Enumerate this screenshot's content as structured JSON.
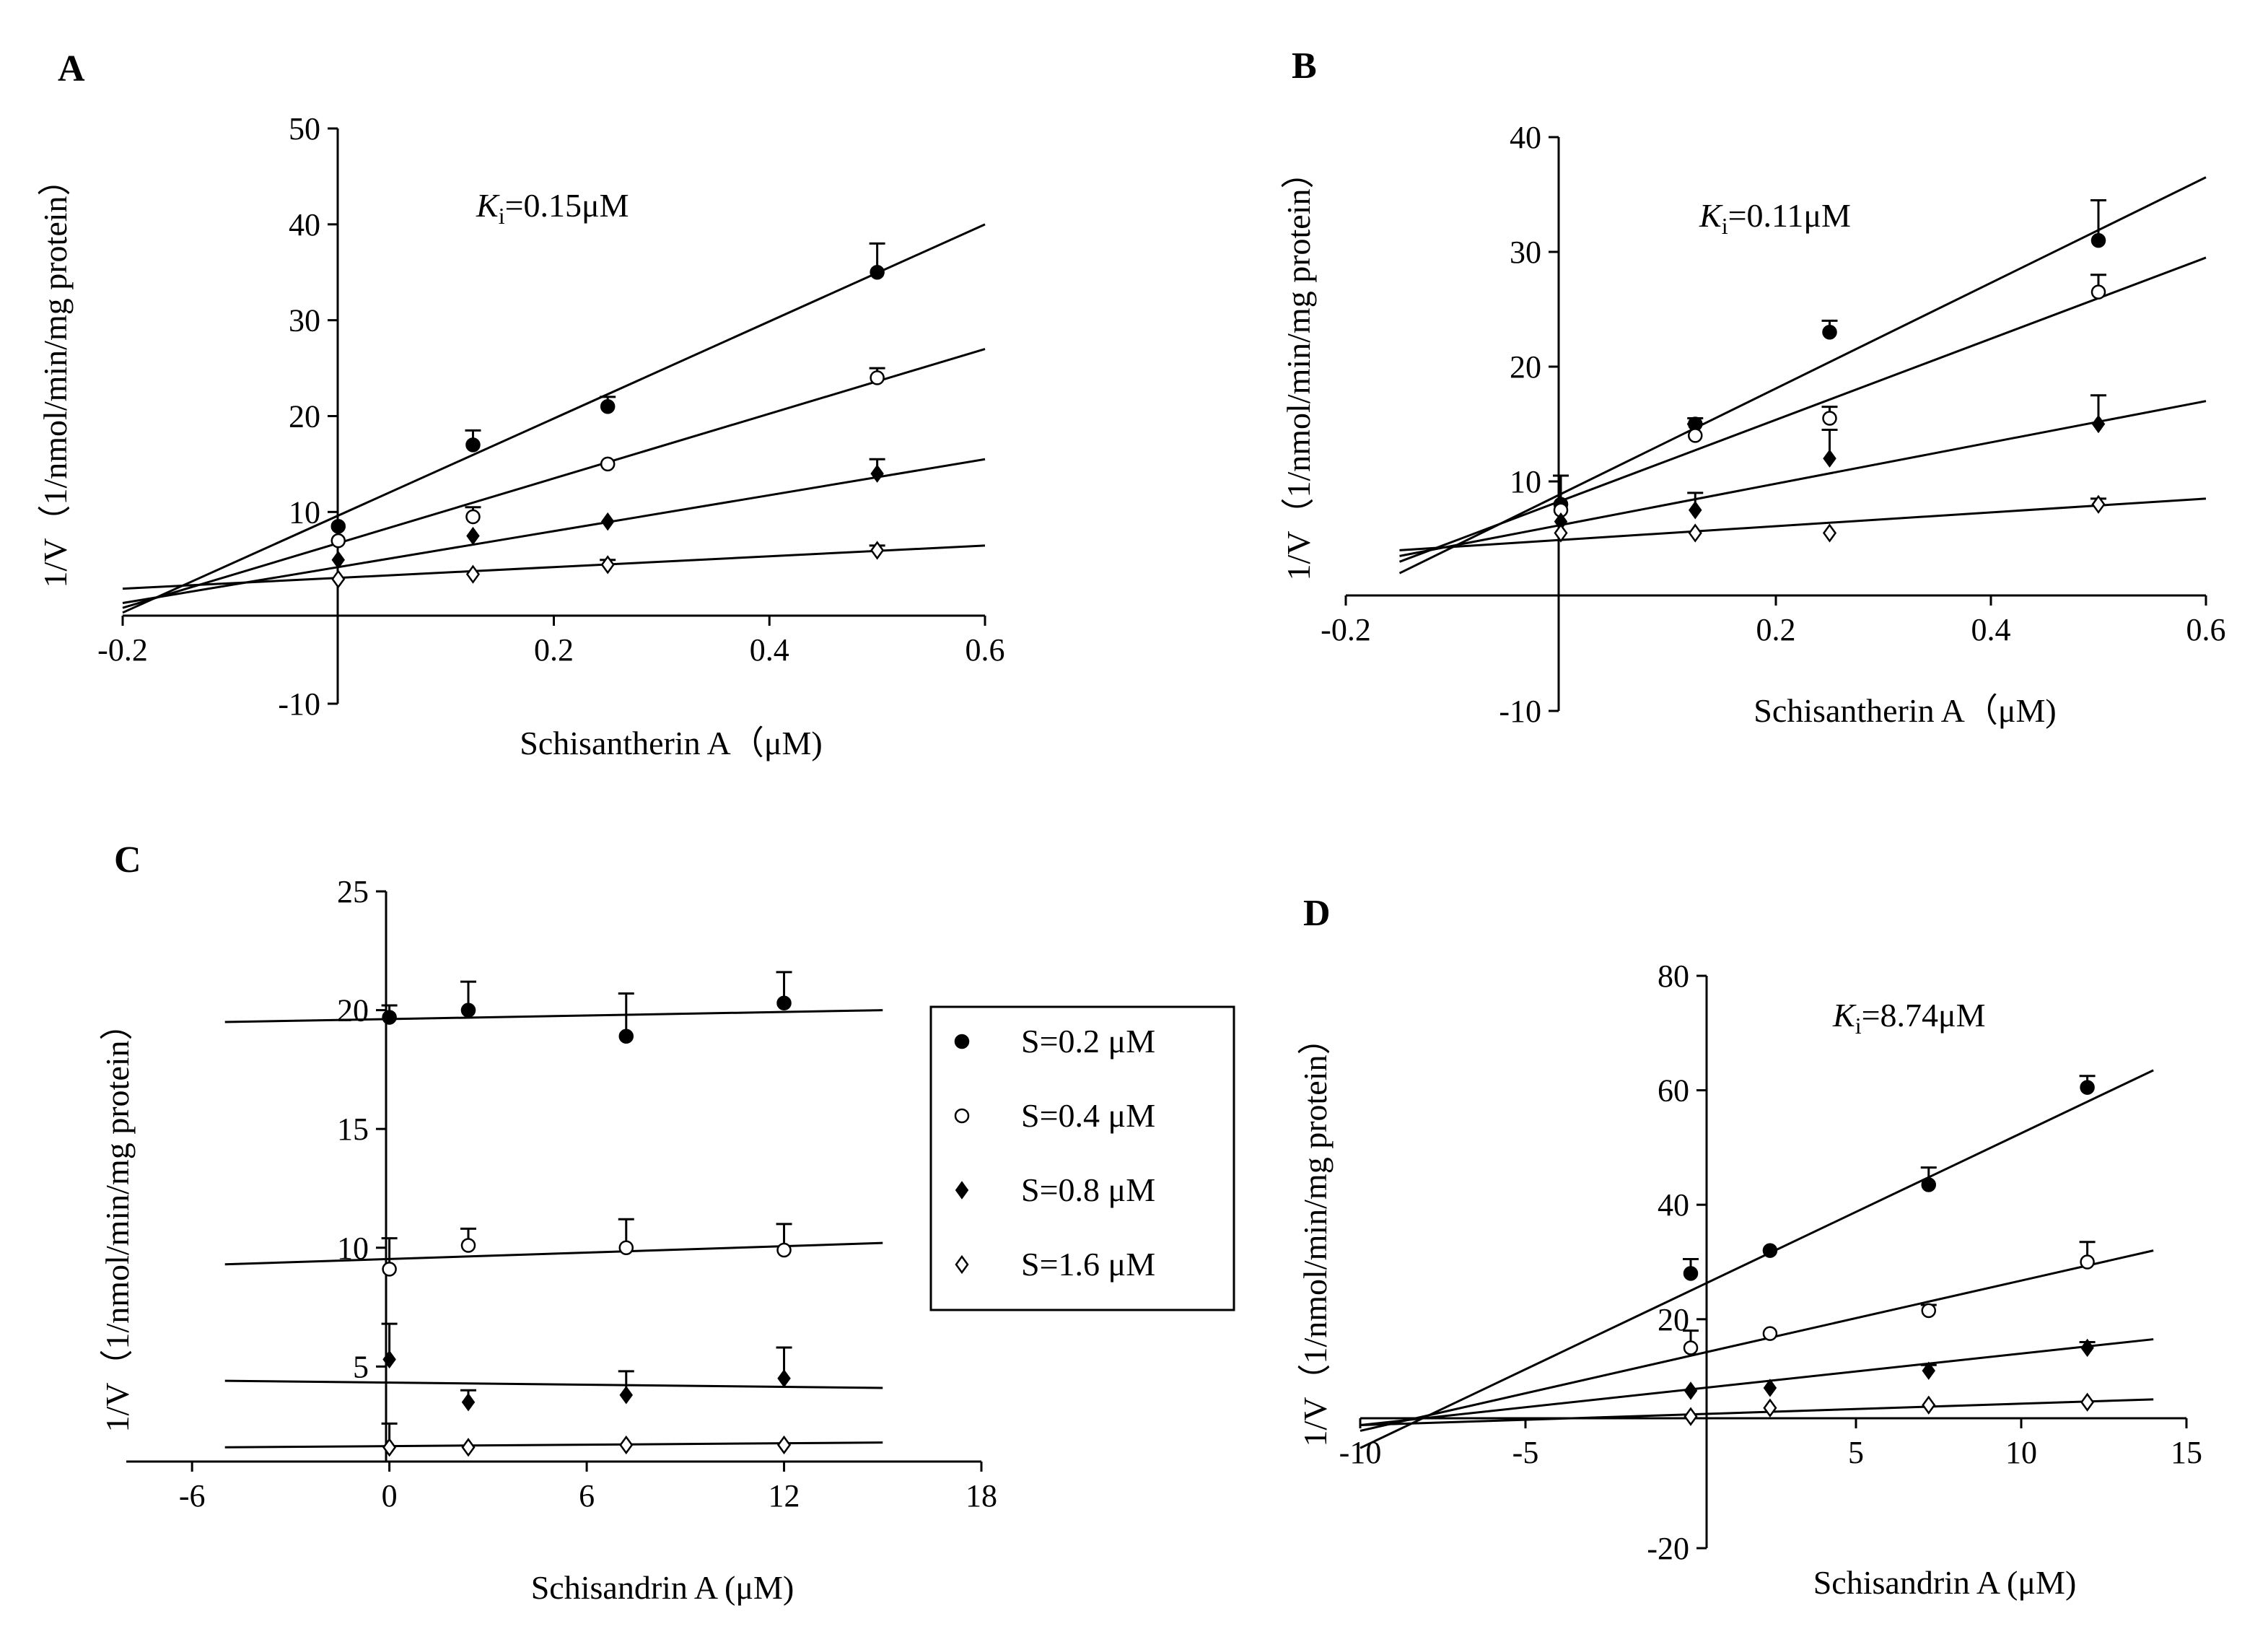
{
  "chart_data": [
    {
      "type": "line",
      "panel": "A",
      "ki_label": {
        "symbol": "K",
        "sub": "i",
        "value": "=0.15μM"
      },
      "xlabel": "Schisantherin A（μM)",
      "ylabel": "1/V（1/nmol/min/mg protein）",
      "xlim": [
        -0.2,
        0.6
      ],
      "ylim": [
        -10,
        50
      ],
      "xticks": [
        {
          "v": -0.2,
          "label": "-0.2"
        },
        {
          "v": 0.2,
          "label": "0.2"
        },
        {
          "v": 0.4,
          "label": "0.4"
        },
        {
          "v": 0.6,
          "label": "0.6"
        }
      ],
      "yticks": [
        {
          "v": -10,
          "label": "-10"
        },
        {
          "v": 10,
          "label": "10"
        },
        {
          "v": 20,
          "label": "20"
        },
        {
          "v": 30,
          "label": "30"
        },
        {
          "v": 40,
          "label": "40"
        },
        {
          "v": 50,
          "label": "50"
        }
      ],
      "series": [
        {
          "marker": "filled-circle",
          "x": [
            0,
            0.125,
            0.25,
            0.5
          ],
          "y": [
            8.5,
            17,
            21,
            35
          ],
          "err": [
            0,
            1.5,
            1,
            3
          ],
          "fit": [
            [
              -0.2,
              -0.5
            ],
            [
              0.6,
              40
            ]
          ]
        },
        {
          "marker": "open-circle",
          "x": [
            0,
            0.125,
            0.25,
            0.5
          ],
          "y": [
            7,
            9.5,
            15,
            24
          ],
          "err": [
            0,
            1,
            0,
            1
          ],
          "fit": [
            [
              -0.2,
              0
            ],
            [
              0.6,
              27
            ]
          ]
        },
        {
          "marker": "filled-diamond",
          "x": [
            0,
            0.125,
            0.25,
            0.5
          ],
          "y": [
            5,
            7.5,
            9,
            14
          ],
          "err": [
            0,
            0,
            0,
            1.5
          ],
          "fit": [
            [
              -0.2,
              0.5
            ],
            [
              0.6,
              15.5
            ]
          ]
        },
        {
          "marker": "open-diamond",
          "x": [
            0,
            0.125,
            0.25,
            0.5
          ],
          "y": [
            3,
            3.5,
            4.5,
            6
          ],
          "err": [
            0,
            0,
            0.5,
            0.5
          ],
          "fit": [
            [
              -0.2,
              2
            ],
            [
              0.6,
              6.5
            ]
          ]
        }
      ]
    },
    {
      "type": "line",
      "panel": "B",
      "ki_label": {
        "symbol": "K",
        "sub": "i",
        "value": "=0.11μM"
      },
      "xlabel": "Schisantherin A（μM)",
      "ylabel": "1/V（1/nmol/min/mg protein）",
      "xlim": [
        -0.2,
        0.6
      ],
      "ylim": [
        -10,
        40
      ],
      "xticks": [
        {
          "v": -0.2,
          "label": "-0.2"
        },
        {
          "v": 0.2,
          "label": "0.2"
        },
        {
          "v": 0.4,
          "label": "0.4"
        },
        {
          "v": 0.6,
          "label": "0.6"
        }
      ],
      "yticks": [
        {
          "v": -10,
          "label": "-10"
        },
        {
          "v": 10,
          "label": "10"
        },
        {
          "v": 20,
          "label": "20"
        },
        {
          "v": 30,
          "label": "30"
        },
        {
          "v": 40,
          "label": "40"
        }
      ],
      "series": [
        {
          "marker": "filled-circle",
          "x": [
            0,
            0.125,
            0.25,
            0.5
          ],
          "y": [
            8,
            15,
            23,
            31
          ],
          "err": [
            2.5,
            0.5,
            1,
            3.5
          ],
          "fit": [
            [
              -0.15,
              2
            ],
            [
              0.6,
              36.5
            ]
          ]
        },
        {
          "marker": "open-circle",
          "x": [
            0,
            0.125,
            0.25,
            0.5
          ],
          "y": [
            7.5,
            14,
            15.5,
            26.5
          ],
          "err": [
            0,
            1,
            1,
            1.5
          ],
          "fit": [
            [
              -0.15,
              3
            ],
            [
              0.6,
              29.5
            ]
          ]
        },
        {
          "marker": "filled-diamond",
          "x": [
            0,
            0.125,
            0.25,
            0.5
          ],
          "y": [
            6.5,
            7.5,
            12,
            15
          ],
          "err": [
            0,
            1.5,
            2.5,
            2.5
          ],
          "fit": [
            [
              -0.15,
              3.5
            ],
            [
              0.6,
              17
            ]
          ]
        },
        {
          "marker": "open-diamond",
          "x": [
            0,
            0.125,
            0.25,
            0.5
          ],
          "y": [
            5.5,
            5.5,
            5.5,
            8
          ],
          "err": [
            0,
            0,
            0,
            0.5
          ],
          "fit": [
            [
              -0.15,
              4
            ],
            [
              0.6,
              8.5
            ]
          ]
        }
      ]
    },
    {
      "type": "line",
      "panel": "C",
      "xlabel": "Schisandrin A (μM)",
      "ylabel": "1/V（1/nmol/min/mg protein）",
      "xlim": [
        -8,
        18
      ],
      "ylim": [
        1,
        25
      ],
      "xticks": [
        {
          "v": -6,
          "label": "-6"
        },
        {
          "v": 0,
          "label": "0"
        },
        {
          "v": 6,
          "label": "6"
        },
        {
          "v": 12,
          "label": "12"
        },
        {
          "v": 18,
          "label": "18"
        }
      ],
      "yticks": [
        {
          "v": 5,
          "label": "5"
        },
        {
          "v": 10,
          "label": "10"
        },
        {
          "v": 15,
          "label": "15"
        },
        {
          "v": 20,
          "label": "20"
        },
        {
          "v": 25,
          "label": "25"
        }
      ],
      "legend": {
        "placement": "right",
        "entries": [
          {
            "marker": "filled-circle",
            "label": "S=0.2 μM"
          },
          {
            "marker": "open-circle",
            "label": "S=0.4 μM"
          },
          {
            "marker": "filled-diamond",
            "label": "S=0.8 μM"
          },
          {
            "marker": "open-diamond",
            "label": "S=1.6 μM"
          }
        ]
      },
      "series": [
        {
          "marker": "filled-circle",
          "x": [
            0,
            2.4,
            7.2,
            12
          ],
          "y": [
            19.7,
            20,
            18.9,
            20.3
          ],
          "err": [
            0.5,
            1.2,
            1.8,
            1.3
          ],
          "fit": [
            [
              -5,
              19.5
            ],
            [
              15,
              20
            ]
          ]
        },
        {
          "marker": "open-circle",
          "x": [
            0,
            2.4,
            7.2,
            12
          ],
          "y": [
            9.1,
            10.1,
            10,
            9.9
          ],
          "err": [
            1.3,
            0.7,
            1.2,
            1.1
          ],
          "fit": [
            [
              -5,
              9.3
            ],
            [
              15,
              10.2
            ]
          ]
        },
        {
          "marker": "filled-diamond",
          "x": [
            0,
            2.4,
            7.2,
            12
          ],
          "y": [
            5.3,
            3.5,
            3.8,
            4.5
          ],
          "err": [
            1.5,
            0.5,
            1,
            1.3
          ],
          "fit": [
            [
              -5,
              4.4
            ],
            [
              15,
              4.1
            ]
          ]
        },
        {
          "marker": "open-diamond",
          "x": [
            0,
            2.4,
            7.2,
            12
          ],
          "y": [
            1.6,
            1.6,
            1.7,
            1.7
          ],
          "err": [
            1,
            0,
            0,
            0
          ],
          "fit": [
            [
              -5,
              1.6
            ],
            [
              15,
              1.8
            ]
          ]
        }
      ]
    },
    {
      "type": "line",
      "panel": "D",
      "ki_label": {
        "symbol": "K",
        "sub": "i",
        "value": "=8.74μM"
      },
      "xlabel": "Schisandrin A (μM)",
      "ylabel": "1/V（1/nmol/min/mg protein）",
      "xlim": [
        -10,
        15
      ],
      "ylim": [
        -20,
        80
      ],
      "xticks": [
        {
          "v": -10,
          "label": "-10"
        },
        {
          "v": -5,
          "label": "-5"
        },
        {
          "v": 5,
          "label": "5"
        },
        {
          "v": 10,
          "label": "10"
        },
        {
          "v": 15,
          "label": "15"
        }
      ],
      "yticks": [
        {
          "v": -20,
          "label": "-20"
        },
        {
          "v": 20,
          "label": "20"
        },
        {
          "v": 40,
          "label": "40"
        },
        {
          "v": 60,
          "label": "60"
        },
        {
          "v": 80,
          "label": "80"
        }
      ],
      "series": [
        {
          "marker": "filled-circle",
          "x": [
            0,
            2.4,
            7.2,
            12
          ],
          "y": [
            28,
            32,
            43.5,
            60.5
          ],
          "err": [
            2.5,
            0,
            3,
            2
          ],
          "fit": [
            [
              -10,
              -2.5
            ],
            [
              14,
              63.5
            ]
          ]
        },
        {
          "marker": "open-circle",
          "x": [
            0,
            2.4,
            7.2,
            12
          ],
          "y": [
            15,
            17.5,
            21.5,
            30
          ],
          "err": [
            3,
            0,
            1,
            3.5
          ],
          "fit": [
            [
              -10,
              0.5
            ],
            [
              14,
              32
            ]
          ]
        },
        {
          "marker": "filled-diamond",
          "x": [
            0,
            2.4,
            7.2,
            12
          ],
          "y": [
            7.5,
            8,
            11,
            15
          ],
          "err": [
            0,
            0,
            1,
            1
          ],
          "fit": [
            [
              -10,
              1.5
            ],
            [
              14,
              16.5
            ]
          ]
        },
        {
          "marker": "open-diamond",
          "x": [
            0,
            2.4,
            7.2,
            12
          ],
          "y": [
            3,
            4.5,
            5,
            5.5
          ],
          "err": [
            0,
            0,
            0,
            0
          ],
          "fit": [
            [
              -10,
              1.5
            ],
            [
              14,
              6
            ]
          ]
        }
      ]
    }
  ]
}
